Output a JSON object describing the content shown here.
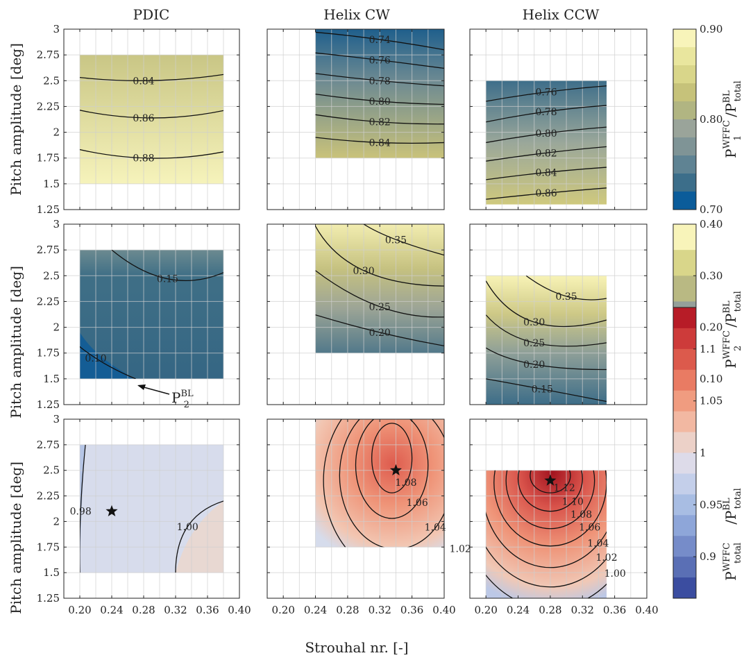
{
  "figure": {
    "column_titles": [
      "PDIC",
      "Helix CW",
      "Helix CCW"
    ],
    "ylabel": "Pitch amplitude [deg]",
    "xlabel": "Strouhal nr. [-]",
    "xticks": [
      "0.20",
      "0.24",
      "0.28",
      "0.32",
      "0.36",
      "0.40"
    ],
    "yticks": [
      "3",
      "2.75",
      "2.5",
      "2.25",
      "2",
      "1.75",
      "1.5",
      "1.25"
    ]
  },
  "colorbars": [
    {
      "label_main": "P",
      "label_sup": "WFFC",
      "label_sub": "1",
      "label_den": "/P",
      "label_den_sup": "BL",
      "label_den_sub": "total",
      "ticks": [
        "0.90",
        "0.80",
        "0.70"
      ],
      "range": [
        0.7,
        0.9
      ],
      "levels": 10,
      "colormap": "parula-like"
    },
    {
      "label_main": "P",
      "label_sup": "WFFC",
      "label_sub": "2",
      "label_den": "/P",
      "label_den_sup": "BL",
      "label_den_sub": "total",
      "ticks": [
        "0.40",
        "0.30",
        "0.20",
        "0.10"
      ],
      "range": [
        0.05,
        0.4
      ],
      "levels": 7,
      "colormap": "parula-like"
    },
    {
      "label_main": "P",
      "label_sup": "WFFC",
      "label_sub": "total",
      "label_den": "/P",
      "label_den_sup": "BL",
      "label_den_sub": "total",
      "ticks": [
        "1.1",
        "1.05",
        "1",
        "0.95",
        "0.9"
      ],
      "range": [
        0.86,
        1.14
      ],
      "levels": 14,
      "colormap": "diverging blue-red"
    }
  ],
  "annotation": {
    "text_main": "P",
    "text_sup": "BL",
    "text_sub": "2"
  },
  "chart_data": [
    {
      "type": "heatmap",
      "row": "P1",
      "column": "PDIC",
      "x_range": [
        0.2,
        0.38
      ],
      "y_range": [
        1.5,
        2.75
      ],
      "contours": [
        {
          "label": "0.84",
          "points": [
            [
              0.18,
              2.55
            ],
            [
              0.28,
              2.5
            ],
            [
              0.38,
              2.56
            ]
          ]
        },
        {
          "label": "0.86",
          "points": [
            [
              0.18,
              2.25
            ],
            [
              0.28,
              2.14
            ],
            [
              0.38,
              2.21
            ]
          ]
        },
        {
          "label": "0.88",
          "points": [
            [
              0.18,
              1.87
            ],
            [
              0.28,
              1.75
            ],
            [
              0.38,
              1.81
            ]
          ]
        }
      ]
    },
    {
      "type": "heatmap",
      "row": "P1",
      "column": "Helix CW",
      "x_range": [
        0.24,
        0.4
      ],
      "y_range": [
        1.75,
        3
      ],
      "contours": [
        {
          "label": "0.74",
          "points": [
            [
              0.24,
              2.97
            ],
            [
              0.32,
              2.9
            ],
            [
              0.4,
              2.8
            ]
          ]
        },
        {
          "label": "0.76",
          "points": [
            [
              0.24,
              2.77
            ],
            [
              0.32,
              2.7
            ],
            [
              0.4,
              2.62
            ]
          ]
        },
        {
          "label": "0.78",
          "points": [
            [
              0.24,
              2.57
            ],
            [
              0.32,
              2.5
            ],
            [
              0.4,
              2.45
            ]
          ]
        },
        {
          "label": "0.80",
          "points": [
            [
              0.24,
              2.37
            ],
            [
              0.32,
              2.3
            ],
            [
              0.4,
              2.27
            ]
          ]
        },
        {
          "label": "0.82",
          "points": [
            [
              0.24,
              2.17
            ],
            [
              0.32,
              2.1
            ],
            [
              0.4,
              2.08
            ]
          ]
        },
        {
          "label": "0.84",
          "points": [
            [
              0.24,
              1.95
            ],
            [
              0.32,
              1.9
            ],
            [
              0.4,
              1.9
            ]
          ]
        }
      ]
    },
    {
      "type": "heatmap",
      "row": "P1",
      "column": "Helix CCW",
      "x_range": [
        0.2,
        0.35
      ],
      "y_range": [
        1.3,
        2.5
      ],
      "contours": [
        {
          "label": "0.76",
          "points": [
            [
              0.2,
              2.3
            ],
            [
              0.275,
              2.39
            ],
            [
              0.35,
              2.45
            ]
          ]
        },
        {
          "label": "0.78",
          "points": [
            [
              0.2,
              2.1
            ],
            [
              0.275,
              2.2
            ],
            [
              0.35,
              2.26
            ]
          ]
        },
        {
          "label": "0.80",
          "points": [
            [
              0.2,
              1.9
            ],
            [
              0.275,
              1.99
            ],
            [
              0.35,
              2.05
            ]
          ]
        },
        {
          "label": "0.82",
          "points": [
            [
              0.2,
              1.72
            ],
            [
              0.275,
              1.8
            ],
            [
              0.35,
              1.86
            ]
          ]
        },
        {
          "label": "0.84",
          "points": [
            [
              0.2,
              1.54
            ],
            [
              0.275,
              1.61
            ],
            [
              0.35,
              1.66
            ]
          ]
        },
        {
          "label": "0.86",
          "points": [
            [
              0.2,
              1.35
            ],
            [
              0.275,
              1.41
            ],
            [
              0.35,
              1.46
            ]
          ]
        }
      ]
    },
    {
      "type": "heatmap",
      "row": "P2",
      "column": "PDIC",
      "x_range": [
        0.2,
        0.38
      ],
      "y_range": [
        1.5,
        2.75
      ],
      "contours": [
        {
          "label": "0.15",
          "points": [
            [
              0.24,
              2.75
            ],
            [
              0.31,
              2.47
            ],
            [
              0.38,
              2.53
            ]
          ]
        },
        {
          "label": "0.10",
          "points": [
            [
              0.18,
              1.95
            ],
            [
              0.22,
              1.7
            ],
            [
              0.27,
              1.5
            ]
          ]
        }
      ]
    },
    {
      "type": "heatmap",
      "row": "P2",
      "column": "Helix CW",
      "x_range": [
        0.24,
        0.4
      ],
      "y_range": [
        1.75,
        3
      ],
      "contours": [
        {
          "label": "0.35",
          "points": [
            [
              0.3,
              3.0
            ],
            [
              0.34,
              2.85
            ],
            [
              0.4,
              2.7
            ]
          ]
        },
        {
          "label": "0.30",
          "points": [
            [
              0.24,
              2.98
            ],
            [
              0.3,
              2.55
            ],
            [
              0.4,
              2.4
            ]
          ]
        },
        {
          "label": "0.25",
          "points": [
            [
              0.24,
              2.55
            ],
            [
              0.32,
              2.2
            ],
            [
              0.4,
              2.1
            ]
          ]
        },
        {
          "label": "0.20",
          "points": [
            [
              0.24,
              2.12
            ],
            [
              0.32,
              1.95
            ],
            [
              0.4,
              1.82
            ]
          ]
        }
      ]
    },
    {
      "type": "heatmap",
      "row": "P2",
      "column": "Helix CCW",
      "x_range": [
        0.2,
        0.35
      ],
      "y_range": [
        1.25,
        2.5
      ],
      "contours": [
        {
          "label": "0.35",
          "points": [
            [
              0.25,
              2.5
            ],
            [
              0.3,
              2.3
            ],
            [
              0.35,
              2.28
            ]
          ]
        },
        {
          "label": "0.30",
          "points": [
            [
              0.2,
              2.45
            ],
            [
              0.26,
              2.05
            ],
            [
              0.35,
              2.07
            ]
          ]
        },
        {
          "label": "0.25",
          "points": [
            [
              0.2,
              2.12
            ],
            [
              0.26,
              1.85
            ],
            [
              0.35,
              1.85
            ]
          ]
        },
        {
          "label": "0.20",
          "points": [
            [
              0.2,
              1.8
            ],
            [
              0.26,
              1.64
            ],
            [
              0.35,
              1.59
            ]
          ]
        },
        {
          "label": "0.15",
          "points": [
            [
              0.2,
              1.5
            ],
            [
              0.27,
              1.4
            ],
            [
              0.35,
              1.28
            ]
          ]
        }
      ]
    },
    {
      "type": "heatmap",
      "row": "Ptotal",
      "column": "PDIC",
      "x_range": [
        0.2,
        0.38
      ],
      "y_range": [
        1.5,
        2.75
      ],
      "optimum": [
        0.24,
        2.1
      ],
      "contours": [
        {
          "label": "0.98",
          "points": [
            [
              0.207,
              2.75
            ],
            [
              0.201,
              2.1
            ],
            [
              0.2,
              1.5
            ]
          ]
        },
        {
          "label": "1.00",
          "points": [
            [
              0.32,
              1.5
            ],
            [
              0.335,
              1.95
            ],
            [
              0.38,
              2.2
            ]
          ]
        }
      ]
    },
    {
      "type": "heatmap",
      "row": "Ptotal",
      "column": "Helix CW",
      "x_range": [
        0.24,
        0.4
      ],
      "y_range": [
        1.75,
        3
      ],
      "optimum": [
        0.34,
        2.5
      ],
      "contours": [
        {
          "label": "1.08",
          "closed": true,
          "center": [
            0.335,
            2.62
          ],
          "rx": 0.025,
          "ry": 0.34
        },
        {
          "label": "1.06",
          "closed": true,
          "center": [
            0.335,
            2.55
          ],
          "rx": 0.045,
          "ry": 0.52
        },
        {
          "label": "1.04",
          "closed": true,
          "center": [
            0.34,
            2.45
          ],
          "rx": 0.07,
          "ry": 0.72
        },
        {
          "label": "1.02",
          "closed": true,
          "center": [
            0.35,
            2.4
          ],
          "rx": 0.1,
          "ry": 0.95
        }
      ]
    },
    {
      "type": "heatmap",
      "row": "Ptotal",
      "column": "Helix CCW",
      "x_range": [
        0.2,
        0.35
      ],
      "y_range": [
        1.25,
        2.5
      ],
      "optimum": [
        0.28,
        2.4
      ],
      "contours": [
        {
          "label": "1.12",
          "closed": true,
          "center": [
            0.28,
            2.45
          ],
          "rx": 0.025,
          "ry": 0.17
        },
        {
          "label": "1.10",
          "closed": true,
          "center": [
            0.28,
            2.42
          ],
          "rx": 0.04,
          "ry": 0.32
        },
        {
          "label": "1.08",
          "closed": true,
          "center": [
            0.28,
            2.4
          ],
          "rx": 0.055,
          "ry": 0.47
        },
        {
          "label": "1.06",
          "closed": true,
          "center": [
            0.28,
            2.38
          ],
          "rx": 0.07,
          "ry": 0.62
        },
        {
          "label": "1.04",
          "closed": true,
          "center": [
            0.28,
            2.35
          ],
          "rx": 0.085,
          "ry": 0.8
        },
        {
          "label": "1.02",
          "closed": true,
          "center": [
            0.28,
            2.33
          ],
          "rx": 0.1,
          "ry": 0.97
        },
        {
          "label": "1.00",
          "closed": true,
          "center": [
            0.28,
            2.3
          ],
          "rx": 0.115,
          "ry": 1.15
        }
      ]
    }
  ]
}
